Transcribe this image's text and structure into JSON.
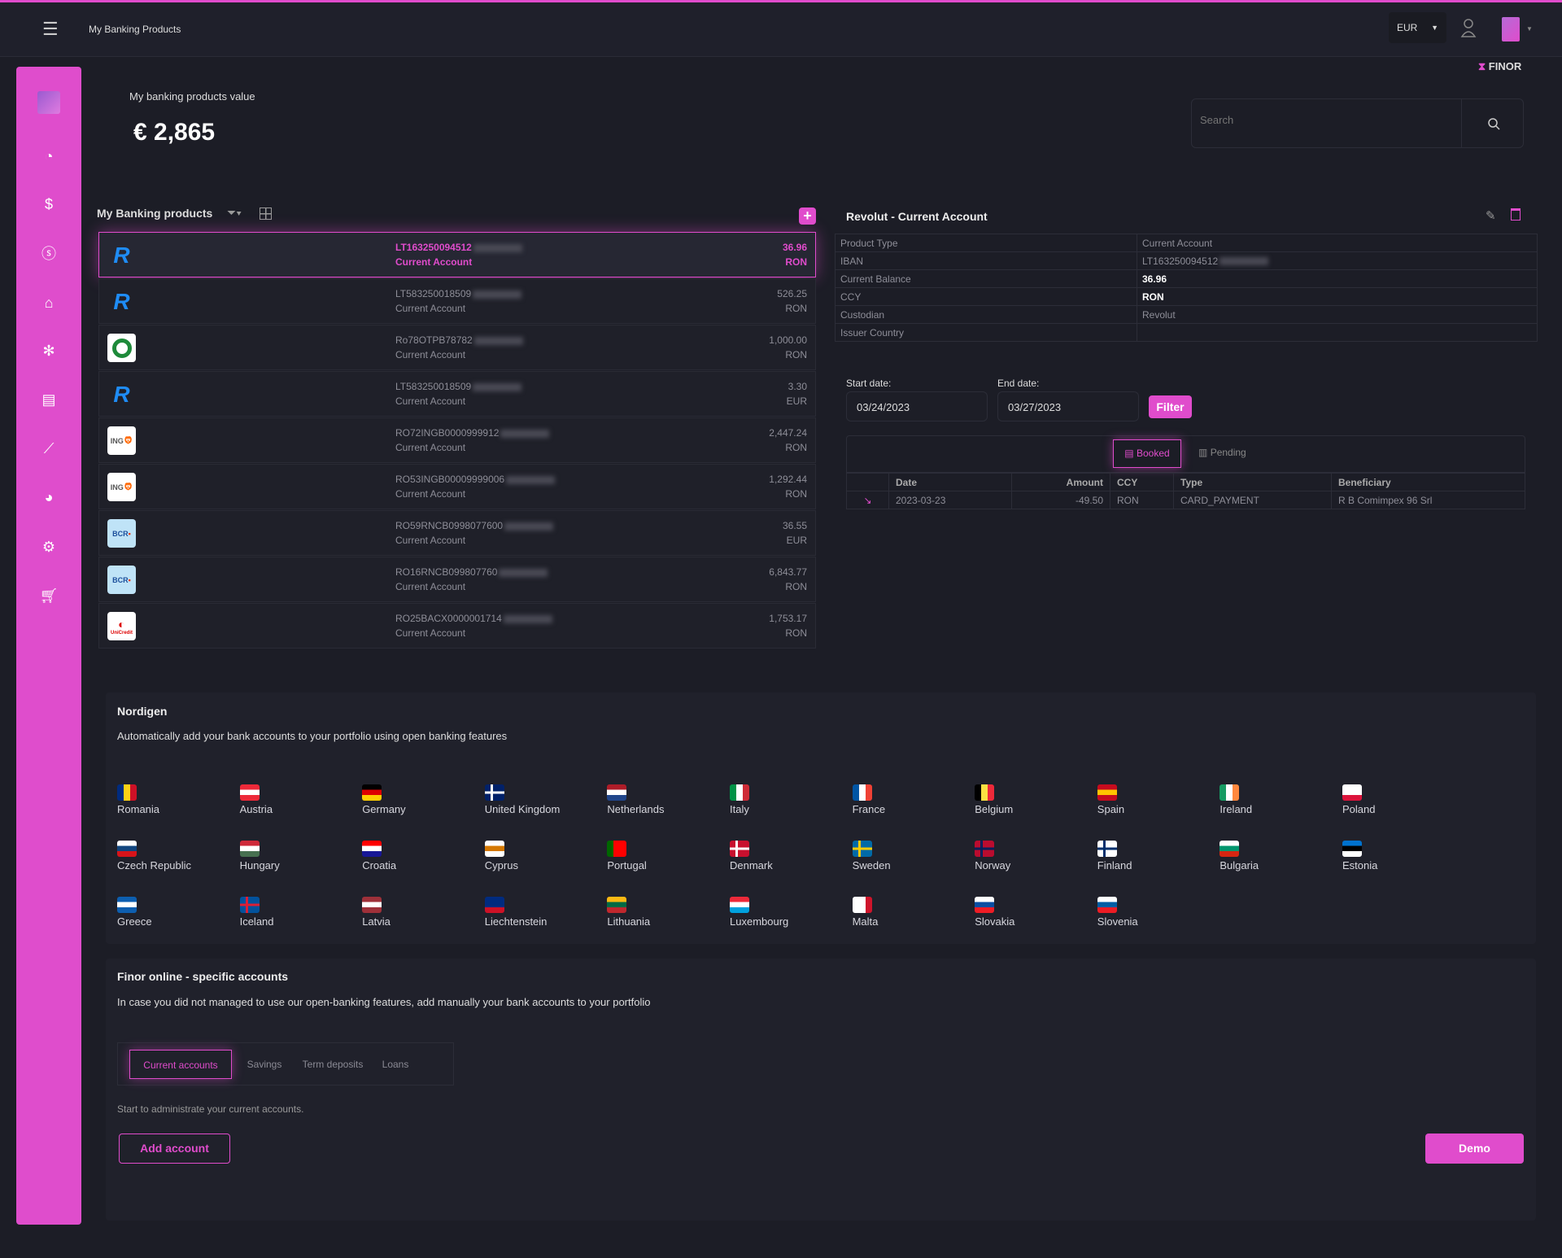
{
  "header": {
    "title": "My Banking Products",
    "currency": "EUR",
    "brand": "FINOR"
  },
  "summary": {
    "label": "My banking products value",
    "value": "€ 2,865"
  },
  "search": {
    "placeholder": "Search"
  },
  "products": {
    "title": "My Banking products",
    "items": [
      {
        "bank": "revolut",
        "iban": "LT163250094512",
        "type": "Current Account",
        "amount": "36.96",
        "ccy": "RON",
        "selected": true
      },
      {
        "bank": "revolut",
        "iban": "LT583250018509",
        "type": "Current Account",
        "amount": "526.25",
        "ccy": "RON"
      },
      {
        "bank": "otp",
        "iban": "Ro78OTPB78782",
        "type": "Current Account",
        "amount": "1,000.00",
        "ccy": "RON"
      },
      {
        "bank": "revolut",
        "iban": "LT583250018509",
        "type": "Current Account",
        "amount": "3.30",
        "ccy": "EUR"
      },
      {
        "bank": "ing",
        "iban": "RO72INGB0000999912",
        "type": "Current Account",
        "amount": "2,447.24",
        "ccy": "RON"
      },
      {
        "bank": "ing",
        "iban": "RO53INGB00009999006",
        "type": "Current Account",
        "amount": "1,292.44",
        "ccy": "RON"
      },
      {
        "bank": "bcr",
        "iban": "RO59RNCB0998077600",
        "type": "Current Account",
        "amount": "36.55",
        "ccy": "EUR"
      },
      {
        "bank": "bcr",
        "iban": "RO16RNCB099807760",
        "type": "Current Account",
        "amount": "6,843.77",
        "ccy": "RON"
      },
      {
        "bank": "unicredit",
        "iban": "RO25BACX0000001714",
        "type": "Current Account",
        "amount": "1,753.17",
        "ccy": "RON"
      }
    ]
  },
  "bank_logos": {
    "revolut": "R",
    "otp": "",
    "ing": "ING",
    "bcr": "BCR",
    "unicredit": "UniCredit"
  },
  "detail": {
    "title": "Revolut - Current Account",
    "rows": [
      {
        "label": "Product Type",
        "value": "Current Account"
      },
      {
        "label": "IBAN",
        "value": "LT163250094512"
      },
      {
        "label": "Current Balance",
        "value": "36.96",
        "bold": true
      },
      {
        "label": "CCY",
        "value": "RON",
        "bold": true
      },
      {
        "label": "Custodian",
        "value": "Revolut"
      },
      {
        "label": "Issuer Country",
        "value": ""
      }
    ]
  },
  "filter": {
    "start_label": "Start date:",
    "start": "03/24/2023",
    "end_label": "End date:",
    "end": "03/27/2023",
    "button": "Filter"
  },
  "tx_tabs": {
    "booked": "Booked",
    "pending": "Pending"
  },
  "transactions": {
    "columns": [
      "",
      "Date",
      "Amount",
      "CCY",
      "Type",
      "Beneficiary"
    ],
    "rows": [
      {
        "date": "2023-03-23",
        "amount": "-49.50",
        "ccy": "RON",
        "type": "CARD_PAYMENT",
        "beneficiary": "R B Comimpex 96 Srl"
      }
    ]
  },
  "nordigen": {
    "title": "Nordigen",
    "subtitle": "Automatically add your bank accounts to your portfolio using open banking features",
    "countries": [
      {
        "name": "Romania",
        "c": [
          "#002b7f",
          "#fcd116",
          "#ce1126"
        ],
        "d": "v"
      },
      {
        "name": "Austria",
        "c": [
          "#ed2939",
          "#ffffff",
          "#ed2939"
        ],
        "d": "h"
      },
      {
        "name": "Germany",
        "c": [
          "#000000",
          "#dd0000",
          "#ffce00"
        ],
        "d": "h"
      },
      {
        "name": "United Kingdom",
        "c": [
          "#012169",
          "#ffffff",
          "#c8102e"
        ],
        "d": "x"
      },
      {
        "name": "Netherlands",
        "c": [
          "#ae1c28",
          "#ffffff",
          "#21468b"
        ],
        "d": "h"
      },
      {
        "name": "Italy",
        "c": [
          "#009246",
          "#ffffff",
          "#ce2b37"
        ],
        "d": "v"
      },
      {
        "name": "France",
        "c": [
          "#0055a4",
          "#ffffff",
          "#ef4135"
        ],
        "d": "v"
      },
      {
        "name": "Belgium",
        "c": [
          "#000000",
          "#fae042",
          "#ed2939"
        ],
        "d": "v"
      },
      {
        "name": "Spain",
        "c": [
          "#c60b1e",
          "#ffc400",
          "#c60b1e"
        ],
        "d": "h"
      },
      {
        "name": "Ireland",
        "c": [
          "#169b62",
          "#ffffff",
          "#ff883e"
        ],
        "d": "v"
      },
      {
        "name": "Poland",
        "c": [
          "#ffffff",
          "#ffffff",
          "#dc143c"
        ],
        "d": "h"
      },
      {
        "name": "Czech Republic",
        "c": [
          "#ffffff",
          "#11457e",
          "#d7141a"
        ],
        "d": "h"
      },
      {
        "name": "Hungary",
        "c": [
          "#ce2939",
          "#ffffff",
          "#477050"
        ],
        "d": "h"
      },
      {
        "name": "Croatia",
        "c": [
          "#ff0000",
          "#ffffff",
          "#171796"
        ],
        "d": "h"
      },
      {
        "name": "Cyprus",
        "c": [
          "#ffffff",
          "#d57800",
          "#ffffff"
        ],
        "d": "h"
      },
      {
        "name": "Portugal",
        "c": [
          "#006600",
          "#ff0000",
          "#ff0000"
        ],
        "d": "v"
      },
      {
        "name": "Denmark",
        "c": [
          "#c8102e",
          "#ffffff",
          "#c8102e"
        ],
        "d": "x"
      },
      {
        "name": "Sweden",
        "c": [
          "#006aa7",
          "#fecc00",
          "#006aa7"
        ],
        "d": "x"
      },
      {
        "name": "Norway",
        "c": [
          "#ba0c2f",
          "#00205b",
          "#ba0c2f"
        ],
        "d": "x"
      },
      {
        "name": "Finland",
        "c": [
          "#ffffff",
          "#002f6c",
          "#ffffff"
        ],
        "d": "x"
      },
      {
        "name": "Bulgaria",
        "c": [
          "#ffffff",
          "#00966e",
          "#d62612"
        ],
        "d": "h"
      },
      {
        "name": "Estonia",
        "c": [
          "#0072ce",
          "#000000",
          "#ffffff"
        ],
        "d": "h"
      },
      {
        "name": "Greece",
        "c": [
          "#0d5eaf",
          "#ffffff",
          "#0d5eaf"
        ],
        "d": "h"
      },
      {
        "name": "Iceland",
        "c": [
          "#02529c",
          "#dc1e35",
          "#02529c"
        ],
        "d": "x"
      },
      {
        "name": "Latvia",
        "c": [
          "#9e3039",
          "#ffffff",
          "#9e3039"
        ],
        "d": "h"
      },
      {
        "name": "Liechtenstein",
        "c": [
          "#002b7f",
          "#002b7f",
          "#ce1126"
        ],
        "d": "h"
      },
      {
        "name": "Lithuania",
        "c": [
          "#fdb913",
          "#006a44",
          "#c1272d"
        ],
        "d": "h"
      },
      {
        "name": "Luxembourg",
        "c": [
          "#ed2939",
          "#ffffff",
          "#00a1de"
        ],
        "d": "h"
      },
      {
        "name": "Malta",
        "c": [
          "#ffffff",
          "#ffffff",
          "#cf142b"
        ],
        "d": "v"
      },
      {
        "name": "Slovakia",
        "c": [
          "#ffffff",
          "#0b4ea2",
          "#ee1c25"
        ],
        "d": "h"
      },
      {
        "name": "Slovenia",
        "c": [
          "#ffffff",
          "#005da4",
          "#ed1c24"
        ],
        "d": "h"
      }
    ]
  },
  "finor_online": {
    "title": "Finor online - specific accounts",
    "subtitle": "In case you did not managed to use our open-banking features, add manually your bank accounts to your portfolio",
    "tabs": [
      "Current accounts",
      "Savings",
      "Term deposits",
      "Loans"
    ],
    "hint": "Start to administrate your current accounts.",
    "add_button": "Add account",
    "demo_button": "Demo"
  },
  "colors": {
    "accent": "#e04ccc",
    "bg": "#1c1d26"
  }
}
